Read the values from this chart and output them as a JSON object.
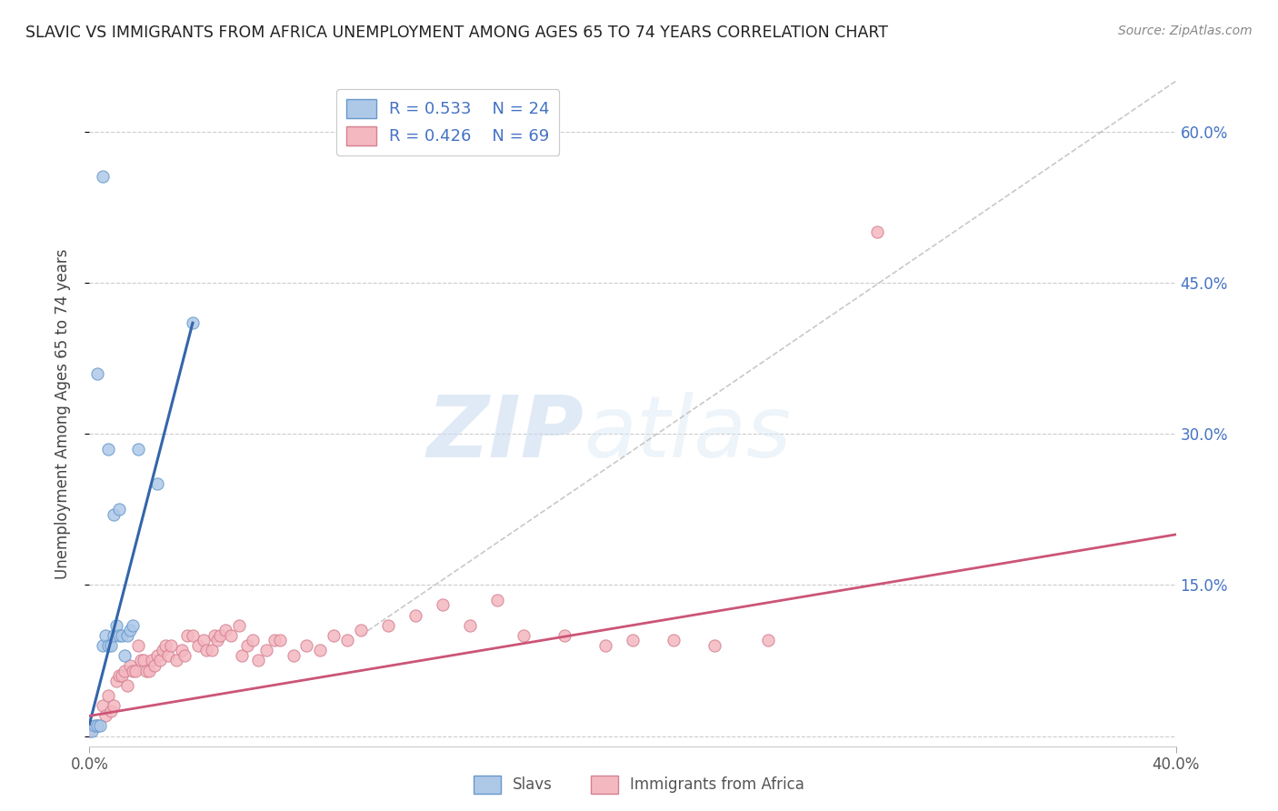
{
  "title": "SLAVIC VS IMMIGRANTS FROM AFRICA UNEMPLOYMENT AMONG AGES 65 TO 74 YEARS CORRELATION CHART",
  "source": "Source: ZipAtlas.com",
  "ylabel": "Unemployment Among Ages 65 to 74 years",
  "xlim": [
    0.0,
    0.4
  ],
  "ylim": [
    -0.01,
    0.65
  ],
  "legend_slavs_R": "R = 0.533",
  "legend_slavs_N": "N = 24",
  "legend_africa_R": "R = 0.426",
  "legend_africa_N": "N = 69",
  "slavs_fill_color": "#aec8e8",
  "slavs_edge_color": "#6699cc",
  "africa_fill_color": "#f4b8c1",
  "africa_edge_color": "#d48090",
  "slavs_line_color": "#3366aa",
  "africa_line_color": "#cc5577",
  "diagonal_color": "#bbbbbb",
  "watermark_zip": "ZIP",
  "watermark_atlas": "atlas",
  "slavs_line_x": [
    0.0,
    0.038
  ],
  "slavs_line_y": [
    0.012,
    0.41
  ],
  "africa_line_x": [
    0.0,
    0.4
  ],
  "africa_line_y": [
    0.02,
    0.2
  ],
  "diag_line_x": [
    0.1,
    0.4
  ],
  "diag_line_y": [
    0.1,
    0.65
  ],
  "slavs_x": [
    0.001,
    0.002,
    0.003,
    0.004,
    0.005,
    0.006,
    0.007,
    0.008,
    0.009,
    0.01,
    0.011,
    0.012,
    0.013,
    0.014,
    0.015,
    0.016,
    0.003,
    0.005,
    0.007,
    0.009,
    0.011,
    0.018,
    0.025,
    0.038
  ],
  "slavs_y": [
    0.005,
    0.01,
    0.01,
    0.01,
    0.09,
    0.1,
    0.09,
    0.09,
    0.1,
    0.11,
    0.1,
    0.1,
    0.08,
    0.1,
    0.105,
    0.11,
    0.36,
    0.555,
    0.285,
    0.22,
    0.225,
    0.285,
    0.25,
    0.41
  ],
  "africa_x": [
    0.0,
    0.003,
    0.005,
    0.006,
    0.007,
    0.008,
    0.009,
    0.01,
    0.011,
    0.012,
    0.013,
    0.014,
    0.015,
    0.016,
    0.017,
    0.018,
    0.019,
    0.02,
    0.021,
    0.022,
    0.023,
    0.024,
    0.025,
    0.026,
    0.027,
    0.028,
    0.029,
    0.03,
    0.032,
    0.034,
    0.035,
    0.036,
    0.038,
    0.04,
    0.042,
    0.043,
    0.045,
    0.046,
    0.047,
    0.048,
    0.05,
    0.052,
    0.055,
    0.056,
    0.058,
    0.06,
    0.062,
    0.065,
    0.068,
    0.07,
    0.075,
    0.08,
    0.085,
    0.09,
    0.095,
    0.1,
    0.11,
    0.12,
    0.13,
    0.14,
    0.15,
    0.16,
    0.175,
    0.19,
    0.2,
    0.215,
    0.23,
    0.25,
    0.29
  ],
  "africa_y": [
    0.005,
    0.01,
    0.03,
    0.02,
    0.04,
    0.025,
    0.03,
    0.055,
    0.06,
    0.06,
    0.065,
    0.05,
    0.07,
    0.065,
    0.065,
    0.09,
    0.075,
    0.075,
    0.065,
    0.065,
    0.075,
    0.07,
    0.08,
    0.075,
    0.085,
    0.09,
    0.08,
    0.09,
    0.075,
    0.085,
    0.08,
    0.1,
    0.1,
    0.09,
    0.095,
    0.085,
    0.085,
    0.1,
    0.095,
    0.1,
    0.105,
    0.1,
    0.11,
    0.08,
    0.09,
    0.095,
    0.075,
    0.085,
    0.095,
    0.095,
    0.08,
    0.09,
    0.085,
    0.1,
    0.095,
    0.105,
    0.11,
    0.12,
    0.13,
    0.11,
    0.135,
    0.1,
    0.1,
    0.09,
    0.095,
    0.095,
    0.09,
    0.095,
    0.5
  ]
}
